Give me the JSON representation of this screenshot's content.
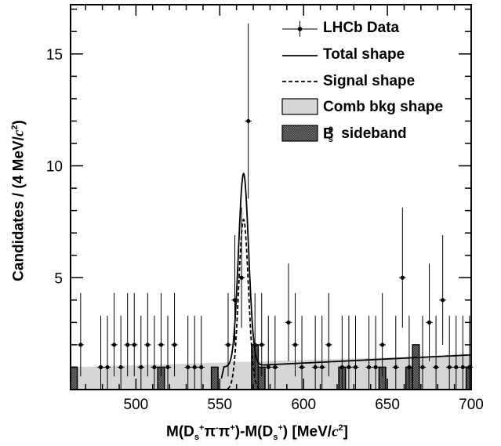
{
  "chart_data": {
    "type": "histogram",
    "xlabel": "M(D_s^+π^-π^+)-M(D_s^+) [MeV/c²]",
    "ylabel": "Candidates / (4 MeV/c²)",
    "xlim": [
      461,
      700
    ],
    "ylim": [
      0,
      17.2
    ],
    "x_ticks": [
      500,
      550,
      600,
      650,
      700
    ],
    "y_ticks": [
      5,
      10,
      15
    ],
    "legend_position": "top-right",
    "legend": [
      "LHCb Data",
      "Total shape",
      "Signal shape",
      "Comb bkg shape",
      "B_s^0 sideband"
    ],
    "data_points": [
      {
        "x": 467,
        "y": 2
      },
      {
        "x": 471,
        "y": 0
      },
      {
        "x": 475,
        "y": 0
      },
      {
        "x": 479,
        "y": 1
      },
      {
        "x": 483,
        "y": 1
      },
      {
        "x": 487,
        "y": 2
      },
      {
        "x": 491,
        "y": 1
      },
      {
        "x": 495,
        "y": 2
      },
      {
        "x": 499,
        "y": 2
      },
      {
        "x": 503,
        "y": 1
      },
      {
        "x": 507,
        "y": 2
      },
      {
        "x": 511,
        "y": 1
      },
      {
        "x": 515,
        "y": 2
      },
      {
        "x": 519,
        "y": 1
      },
      {
        "x": 523,
        "y": 2
      },
      {
        "x": 527,
        "y": 0
      },
      {
        "x": 531,
        "y": 1
      },
      {
        "x": 535,
        "y": 1
      },
      {
        "x": 539,
        "y": 1
      },
      {
        "x": 543,
        "y": 0
      },
      {
        "x": 547,
        "y": 0
      },
      {
        "x": 551,
        "y": 0
      },
      {
        "x": 555,
        "y": 2
      },
      {
        "x": 559,
        "y": 4
      },
      {
        "x": 563,
        "y": 5
      },
      {
        "x": 567,
        "y": 12
      },
      {
        "x": 571,
        "y": 2
      },
      {
        "x": 575,
        "y": 2
      },
      {
        "x": 579,
        "y": 1
      },
      {
        "x": 583,
        "y": 1
      },
      {
        "x": 587,
        "y": 0
      },
      {
        "x": 591,
        "y": 3
      },
      {
        "x": 595,
        "y": 2
      },
      {
        "x": 599,
        "y": 1
      },
      {
        "x": 603,
        "y": 0
      },
      {
        "x": 607,
        "y": 1
      },
      {
        "x": 611,
        "y": 1
      },
      {
        "x": 615,
        "y": 2
      },
      {
        "x": 619,
        "y": 0
      },
      {
        "x": 623,
        "y": 1
      },
      {
        "x": 627,
        "y": 1
      },
      {
        "x": 631,
        "y": 1
      },
      {
        "x": 635,
        "y": 0
      },
      {
        "x": 639,
        "y": 1
      },
      {
        "x": 643,
        "y": 1
      },
      {
        "x": 647,
        "y": 2
      },
      {
        "x": 651,
        "y": 0
      },
      {
        "x": 655,
        "y": 1
      },
      {
        "x": 659,
        "y": 5
      },
      {
        "x": 663,
        "y": 1
      },
      {
        "x": 667,
        "y": 0
      },
      {
        "x": 671,
        "y": 1
      },
      {
        "x": 675,
        "y": 3
      },
      {
        "x": 679,
        "y": 1
      },
      {
        "x": 683,
        "y": 4
      },
      {
        "x": 687,
        "y": 1
      },
      {
        "x": 691,
        "y": 1
      },
      {
        "x": 695,
        "y": 1
      },
      {
        "x": 699,
        "y": 1
      }
    ],
    "total_shape": {
      "peak_x": 564.2,
      "peak_y": 8.6,
      "sigma": 3.0,
      "threshold_x": 551,
      "background_from": [
        549.5,
        1.0
      ],
      "background_to": [
        700,
        1.55
      ]
    },
    "signal_shape": {
      "peak_x": 564.2,
      "peak_y": 7.6,
      "sigma": 2.9,
      "threshold_x": 551
    },
    "comb_bkg_shape": {
      "from": [
        461,
        1.0
      ],
      "to": [
        700,
        1.55
      ],
      "threshold_x": 549.5
    },
    "bs0_sideband": [
      {
        "x0": 461,
        "x1": 465,
        "h": 1
      },
      {
        "x0": 513,
        "x1": 517,
        "h": 1
      },
      {
        "x0": 545,
        "x1": 549,
        "h": 1
      },
      {
        "x0": 569,
        "x1": 573,
        "h": 2
      },
      {
        "x0": 573,
        "x1": 577,
        "h": 1
      },
      {
        "x0": 621,
        "x1": 625,
        "h": 1
      },
      {
        "x0": 645,
        "x1": 649,
        "h": 1
      },
      {
        "x0": 661,
        "x1": 665,
        "h": 1
      },
      {
        "x0": 665,
        "x1": 669,
        "h": 2
      },
      {
        "x0": 697,
        "x1": 700,
        "h": 1
      }
    ]
  }
}
